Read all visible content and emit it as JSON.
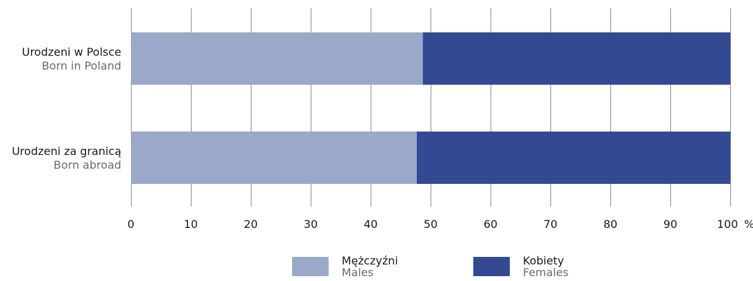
{
  "chart_data": {
    "type": "bar",
    "stacked": true,
    "orientation": "horizontal",
    "categories": [
      {
        "label": "Urodzeni w Polsce",
        "sublabel": "Born in Poland"
      },
      {
        "label": "Urodzeni za granicą",
        "sublabel": "Born abroad"
      }
    ],
    "series": [
      {
        "name": "Mężczyźni",
        "name_en": "Males",
        "color": "#9aa8c9",
        "values": [
          48.7,
          47.7
        ]
      },
      {
        "name": "Kobiety",
        "name_en": "Females",
        "color": "#334a93",
        "values": [
          51.3,
          52.3
        ]
      }
    ],
    "xlim": [
      0,
      100
    ],
    "xticks": [
      "0",
      "10",
      "20",
      "30",
      "40",
      "50",
      "60",
      "70",
      "80",
      "90",
      "100"
    ],
    "x_unit": "%",
    "grid": true,
    "legend_position": "bottom"
  }
}
